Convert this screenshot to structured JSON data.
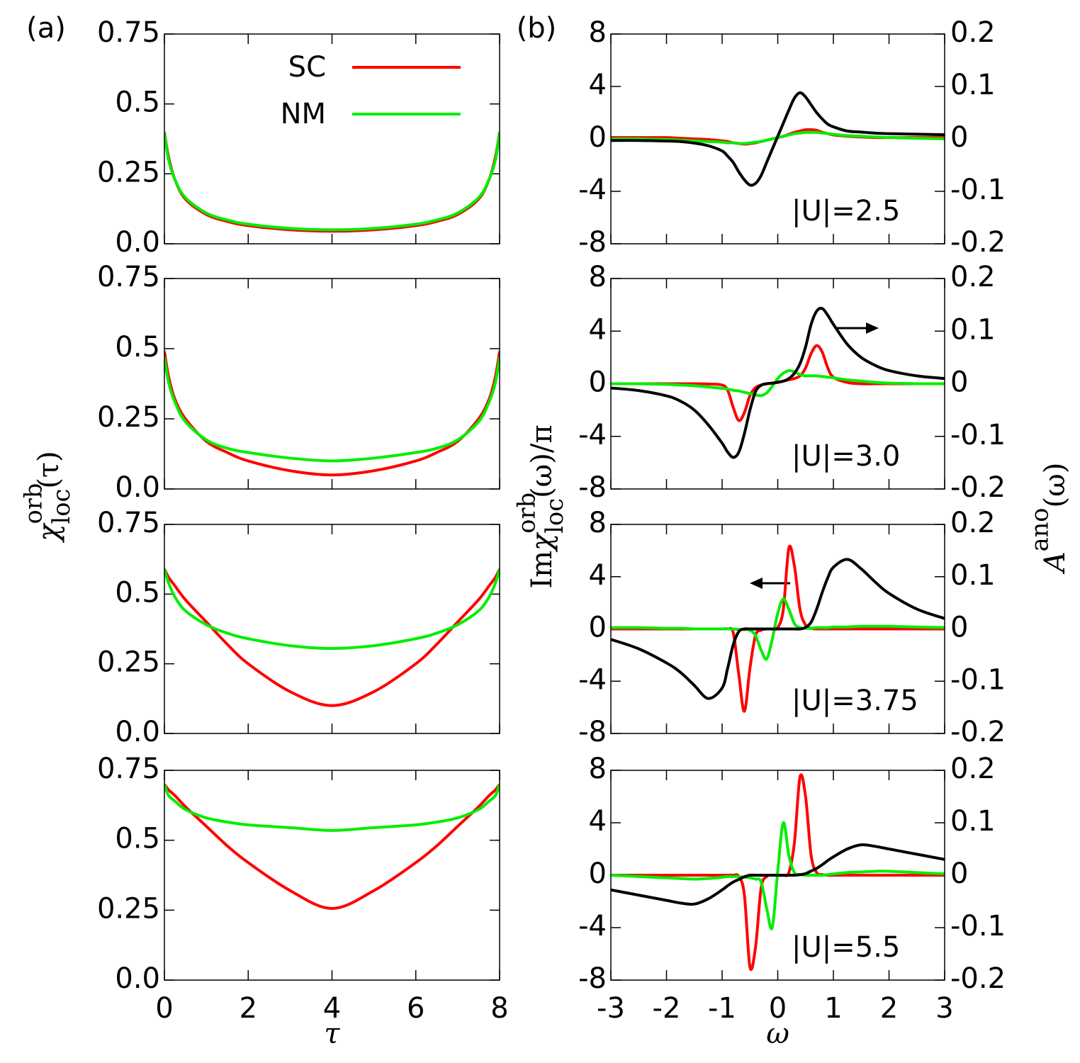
{
  "chart_data": [
    {
      "type": "line",
      "panel_label": "(a)",
      "legend": true,
      "ylabel": {
        "symbol": "χ",
        "sup": "orb",
        "sub": "loc",
        "suffix": "(τ)"
      },
      "x": [
        0,
        0.1,
        0.25,
        0.5,
        1,
        1.5,
        2,
        3,
        4,
        5,
        6,
        6.5,
        7,
        7.5,
        7.75,
        7.9,
        8
      ],
      "xlim": [
        0,
        8
      ],
      "xticks": [
        0,
        2,
        4,
        6,
        8
      ],
      "ylim": [
        0,
        0.75
      ],
      "yticks": [
        {
          "value": 0,
          "label": "0.0"
        },
        0.25,
        0.5,
        0.75
      ],
      "series": [
        {
          "name": "SC",
          "color": "#ff0000",
          "values": [
            0.4,
            0.31,
            0.23,
            0.16,
            0.105,
            0.08,
            0.065,
            0.05,
            0.045,
            0.05,
            0.065,
            0.08,
            0.105,
            0.16,
            0.23,
            0.31,
            0.4
          ]
        },
        {
          "name": "NM",
          "color": "#00ee00",
          "values": [
            0.4,
            0.3,
            0.23,
            0.165,
            0.11,
            0.085,
            0.07,
            0.055,
            0.05,
            0.055,
            0.07,
            0.085,
            0.11,
            0.165,
            0.23,
            0.3,
            0.4
          ]
        }
      ]
    },
    {
      "type": "line",
      "x": [
        0,
        0.1,
        0.25,
        0.5,
        1,
        1.5,
        2,
        3,
        4,
        5,
        6,
        6.5,
        7,
        7.5,
        7.75,
        7.9,
        8
      ],
      "xlim": [
        0,
        8
      ],
      "xticks": [
        0,
        2,
        4,
        6,
        8
      ],
      "ylim": [
        0,
        0.75
      ],
      "yticks": [
        {
          "value": 0,
          "label": "0.0"
        },
        0.25,
        0.5,
        0.75
      ],
      "series": [
        {
          "color": "#ff0000",
          "values": [
            0.49,
            0.4,
            0.32,
            0.25,
            0.17,
            0.13,
            0.1,
            0.065,
            0.05,
            0.065,
            0.1,
            0.13,
            0.17,
            0.25,
            0.32,
            0.4,
            0.49
          ]
        },
        {
          "color": "#00ee00",
          "values": [
            0.47,
            0.38,
            0.31,
            0.24,
            0.175,
            0.145,
            0.13,
            0.11,
            0.1,
            0.11,
            0.13,
            0.145,
            0.175,
            0.24,
            0.31,
            0.38,
            0.47
          ]
        }
      ]
    },
    {
      "type": "line",
      "x": [
        0,
        0.1,
        0.25,
        0.5,
        1,
        1.5,
        2,
        3,
        4,
        5,
        6,
        6.5,
        7,
        7.5,
        7.75,
        7.9,
        8
      ],
      "xlim": [
        0,
        8
      ],
      "xticks": [
        0,
        2,
        4,
        6,
        8
      ],
      "ylim": [
        0,
        0.75
      ],
      "yticks": [
        {
          "value": 0,
          "label": "0.0"
        },
        0.25,
        0.5,
        0.75
      ],
      "series": [
        {
          "color": "#ff0000",
          "values": [
            0.59,
            0.56,
            0.53,
            0.48,
            0.4,
            0.32,
            0.25,
            0.15,
            0.1,
            0.15,
            0.25,
            0.32,
            0.4,
            0.48,
            0.53,
            0.56,
            0.59
          ]
        },
        {
          "color": "#00ee00",
          "values": [
            0.59,
            0.54,
            0.49,
            0.44,
            0.39,
            0.36,
            0.34,
            0.315,
            0.305,
            0.315,
            0.34,
            0.36,
            0.39,
            0.44,
            0.49,
            0.54,
            0.59
          ]
        }
      ]
    },
    {
      "type": "line",
      "xlabel": "τ",
      "x": [
        0,
        0.1,
        0.25,
        0.5,
        1,
        1.5,
        2,
        3,
        4,
        5,
        6,
        6.5,
        7,
        7.5,
        7.75,
        7.9,
        8
      ],
      "xlim": [
        0,
        8
      ],
      "xticks": [
        0,
        2,
        4,
        6,
        8
      ],
      "ylim": [
        0,
        0.75
      ],
      "yticks": [
        {
          "value": 0,
          "label": "0.0"
        },
        0.25,
        0.5,
        0.75
      ],
      "series": [
        {
          "color": "#ff0000",
          "values": [
            0.7,
            0.68,
            0.66,
            0.62,
            0.55,
            0.48,
            0.42,
            0.32,
            0.256,
            0.32,
            0.42,
            0.48,
            0.55,
            0.62,
            0.66,
            0.68,
            0.7
          ]
        },
        {
          "color": "#00ee00",
          "values": [
            0.7,
            0.66,
            0.64,
            0.61,
            0.58,
            0.565,
            0.555,
            0.545,
            0.535,
            0.545,
            0.555,
            0.565,
            0.58,
            0.61,
            0.64,
            0.66,
            0.7
          ]
        }
      ]
    },
    {
      "type": "line",
      "panel_label": "(b)",
      "annotation": "|U|=2.5",
      "ylabel": {
        "prefix": "Im",
        "symbol": "χ",
        "sup": "orb",
        "sub": "loc",
        "suffix": "(ω)/π"
      },
      "y2label": {
        "symbol": "A",
        "sup": "ano",
        "suffix": "(ω)"
      },
      "x": [
        -3,
        -2.5,
        -2,
        -1.75,
        -1.5,
        -1.25,
        -1,
        -0.9,
        -0.8,
        -0.7,
        -0.6,
        -0.5,
        -0.4,
        -0.3,
        -0.2,
        -0.1,
        0,
        0.1,
        0.2,
        0.3,
        0.4,
        0.5,
        0.6,
        0.7,
        0.8,
        0.9,
        1,
        1.25,
        1.5,
        1.75,
        2,
        2.5,
        3
      ],
      "xlim": [
        -3,
        3
      ],
      "xticks": [
        -3,
        -2,
        -1,
        0,
        1,
        2,
        3
      ],
      "ylim": [
        -8,
        8
      ],
      "yticks": [
        -8,
        -4,
        0,
        4,
        8
      ],
      "y2lim": [
        -0.2,
        0.2
      ],
      "y2ticks": [
        -0.2,
        -0.1,
        0,
        0.1,
        0.2
      ],
      "series": [
        {
          "color": "#ff0000",
          "values": [
            0.1,
            0.1,
            0.1,
            0.05,
            0,
            -0.05,
            -0.15,
            -0.2,
            -0.3,
            -0.35,
            -0.4,
            -0.35,
            -0.3,
            -0.2,
            -0.1,
            0,
            0.1,
            0.2,
            0.35,
            0.5,
            0.6,
            0.7,
            0.7,
            0.65,
            0.5,
            0.4,
            0.3,
            0.2,
            0.15,
            0.1,
            0.1,
            0.1,
            0.1
          ]
        },
        {
          "color": "#00ee00",
          "values": [
            0,
            0,
            -0.05,
            -0.1,
            -0.15,
            -0.2,
            -0.25,
            -0.3,
            -0.3,
            -0.35,
            -0.35,
            -0.3,
            -0.25,
            -0.2,
            -0.1,
            0,
            0.1,
            0.2,
            0.3,
            0.4,
            0.45,
            0.5,
            0.5,
            0.5,
            0.45,
            0.4,
            0.35,
            0.25,
            0.2,
            0.15,
            0.1,
            0.05,
            0
          ]
        },
        {
          "color": "#000000",
          "axis": "y2",
          "values": [
            -0.003,
            -0.003,
            -0.004,
            -0.005,
            -0.008,
            -0.013,
            -0.023,
            -0.033,
            -0.045,
            -0.063,
            -0.078,
            -0.088,
            -0.085,
            -0.07,
            -0.045,
            -0.02,
            0.005,
            0.03,
            0.055,
            0.078,
            0.088,
            0.08,
            0.065,
            0.05,
            0.038,
            0.028,
            0.023,
            0.015,
            0.013,
            0.011,
            0.01,
            0.009,
            0.008
          ]
        }
      ]
    },
    {
      "type": "line",
      "annotation": "|U|=3.0",
      "x": [
        -3,
        -2.5,
        -2,
        -1.75,
        -1.5,
        -1.25,
        -1,
        -0.9,
        -0.8,
        -0.7,
        -0.6,
        -0.5,
        -0.4,
        -0.3,
        -0.2,
        -0.1,
        0,
        0.1,
        0.2,
        0.3,
        0.4,
        0.5,
        0.6,
        0.7,
        0.8,
        0.9,
        1,
        1.25,
        1.5,
        1.75,
        2,
        2.5,
        3
      ],
      "xlim": [
        -3,
        3
      ],
      "xticks": [
        -3,
        -2,
        -1,
        0,
        1,
        2,
        3
      ],
      "ylim": [
        -8,
        8
      ],
      "yticks": [
        -8,
        -4,
        0,
        4,
        8
      ],
      "y2lim": [
        -0.2,
        0.2
      ],
      "y2ticks": [
        -0.2,
        -0.1,
        0,
        0.1,
        0.2
      ],
      "series": [
        {
          "color": "#ff0000",
          "values": [
            0,
            0,
            0,
            0,
            0,
            -0.02,
            -0.1,
            -0.5,
            -1.8,
            -2.8,
            -2.2,
            -0.9,
            -0.3,
            -0.1,
            0,
            0.05,
            0.1,
            0.2,
            0.3,
            0.4,
            0.6,
            1.2,
            2.3,
            2.9,
            2.4,
            1.2,
            0.5,
            0.1,
            0,
            0,
            0,
            0,
            0
          ]
        },
        {
          "color": "#00ee00",
          "values": [
            0,
            0,
            -0.05,
            -0.1,
            -0.15,
            -0.25,
            -0.35,
            -0.4,
            -0.5,
            -0.55,
            -0.65,
            -0.75,
            -0.85,
            -0.9,
            -0.7,
            -0.2,
            0.4,
            0.8,
            1.0,
            0.9,
            0.7,
            0.6,
            0.6,
            0.6,
            0.55,
            0.5,
            0.45,
            0.3,
            0.2,
            0.1,
            0.05,
            0,
            0
          ]
        },
        {
          "color": "#000000",
          "axis": "y2",
          "values": [
            -0.008,
            -0.013,
            -0.023,
            -0.033,
            -0.05,
            -0.078,
            -0.113,
            -0.13,
            -0.14,
            -0.13,
            -0.095,
            -0.05,
            -0.015,
            -0.003,
            0,
            0.001,
            0.003,
            0.005,
            0.01,
            0.02,
            0.038,
            0.07,
            0.113,
            0.138,
            0.143,
            0.13,
            0.113,
            0.075,
            0.05,
            0.035,
            0.025,
            0.015,
            0.01
          ]
        }
      ]
    },
    {
      "type": "line",
      "annotation": "|U|=3.75",
      "x": [
        -3,
        -2.5,
        -2,
        -1.75,
        -1.5,
        -1.25,
        -1,
        -0.9,
        -0.8,
        -0.7,
        -0.6,
        -0.5,
        -0.4,
        -0.3,
        -0.2,
        -0.1,
        0,
        0.1,
        0.2,
        0.3,
        0.4,
        0.5,
        0.6,
        0.7,
        0.8,
        0.9,
        1,
        1.25,
        1.5,
        1.75,
        2,
        2.5,
        3
      ],
      "xlim": [
        -3,
        3
      ],
      "xticks": [
        -3,
        -2,
        -1,
        0,
        1,
        2,
        3
      ],
      "ylim": [
        -8,
        8
      ],
      "yticks": [
        -8,
        -4,
        0,
        4,
        8
      ],
      "y2lim": [
        -0.2,
        0.2
      ],
      "y2ticks": [
        -0.2,
        -0.1,
        0,
        0.1,
        0.2
      ],
      "series": [
        {
          "color": "#ff0000",
          "values": [
            0,
            0,
            0,
            0,
            0,
            0,
            0,
            0,
            -0.3,
            -3.5,
            -6.3,
            -3,
            -0.5,
            -0.1,
            0,
            0,
            0.1,
            1.5,
            6.2,
            4.8,
            1.5,
            0.3,
            0.05,
            0,
            0,
            0,
            0,
            0,
            0,
            0,
            0,
            0,
            0
          ]
        },
        {
          "color": "#00ee00",
          "values": [
            0.1,
            0.1,
            0.05,
            0.05,
            0,
            0,
            0,
            0,
            0,
            -0.05,
            -0.05,
            -0.1,
            -0.5,
            -1.6,
            -2.3,
            -0.8,
            1.2,
            2.3,
            1.5,
            0.4,
            0.1,
            0.05,
            0.05,
            0.1,
            0.1,
            0.1,
            0.15,
            0.15,
            0.2,
            0.2,
            0.2,
            0.15,
            0.1
          ]
        },
        {
          "color": "#000000",
          "axis": "y2",
          "values": [
            -0.02,
            -0.038,
            -0.065,
            -0.083,
            -0.108,
            -0.133,
            -0.113,
            -0.075,
            -0.03,
            -0.005,
            0,
            0,
            0,
            0,
            0,
            0,
            0,
            0,
            0,
            0,
            0,
            0.003,
            0.013,
            0.038,
            0.07,
            0.098,
            0.118,
            0.133,
            0.115,
            0.09,
            0.068,
            0.038,
            0.02
          ]
        }
      ]
    },
    {
      "type": "line",
      "annotation": "|U|=5.5",
      "xlabel": "ω",
      "x": [
        -3,
        -2.5,
        -2,
        -1.75,
        -1.5,
        -1.25,
        -1,
        -0.9,
        -0.8,
        -0.7,
        -0.6,
        -0.5,
        -0.4,
        -0.3,
        -0.2,
        -0.1,
        0,
        0.1,
        0.2,
        0.3,
        0.4,
        0.5,
        0.6,
        0.7,
        0.8,
        0.9,
        1,
        1.25,
        1.5,
        1.75,
        2,
        2.5,
        3
      ],
      "xlim": [
        -3,
        3
      ],
      "xticks": [
        -3,
        -2,
        -1,
        0,
        1,
        2,
        3
      ],
      "ylim": [
        -8,
        8
      ],
      "yticks": [
        -8,
        -4,
        0,
        4,
        8
      ],
      "y2lim": [
        -0.2,
        0.2
      ],
      "y2ticks": [
        -0.2,
        -0.1,
        0,
        0.1,
        0.2
      ],
      "series": [
        {
          "color": "#ff0000",
          "values": [
            0,
            0,
            0,
            0,
            0,
            0,
            0,
            0,
            0,
            -0.1,
            -1.5,
            -7,
            -5.5,
            -1,
            -0.1,
            0,
            0,
            0,
            0.2,
            2.5,
            7.5,
            6,
            1.5,
            0.2,
            0.05,
            0,
            0,
            0,
            0,
            0,
            0,
            0,
            0
          ]
        },
        {
          "color": "#00ee00",
          "values": [
            0,
            -0.1,
            -0.2,
            -0.25,
            -0.3,
            -0.25,
            -0.15,
            -0.1,
            -0.1,
            -0.1,
            -0.15,
            -0.2,
            -0.3,
            -0.5,
            -2.5,
            -4,
            0.3,
            4,
            1.5,
            0.2,
            0.05,
            0,
            0,
            0,
            0,
            0.05,
            0.1,
            0.2,
            0.25,
            0.3,
            0.3,
            0.2,
            0.1
          ]
        },
        {
          "color": "#000000",
          "axis": "y2",
          "values": [
            -0.028,
            -0.038,
            -0.048,
            -0.053,
            -0.055,
            -0.045,
            -0.028,
            -0.02,
            -0.013,
            -0.008,
            -0.003,
            0,
            0,
            0,
            0,
            0,
            0,
            0,
            0,
            0,
            0.001,
            0.003,
            0.008,
            0.013,
            0.02,
            0.028,
            0.035,
            0.05,
            0.058,
            0.055,
            0.05,
            0.04,
            0.03
          ]
        }
      ]
    }
  ]
}
